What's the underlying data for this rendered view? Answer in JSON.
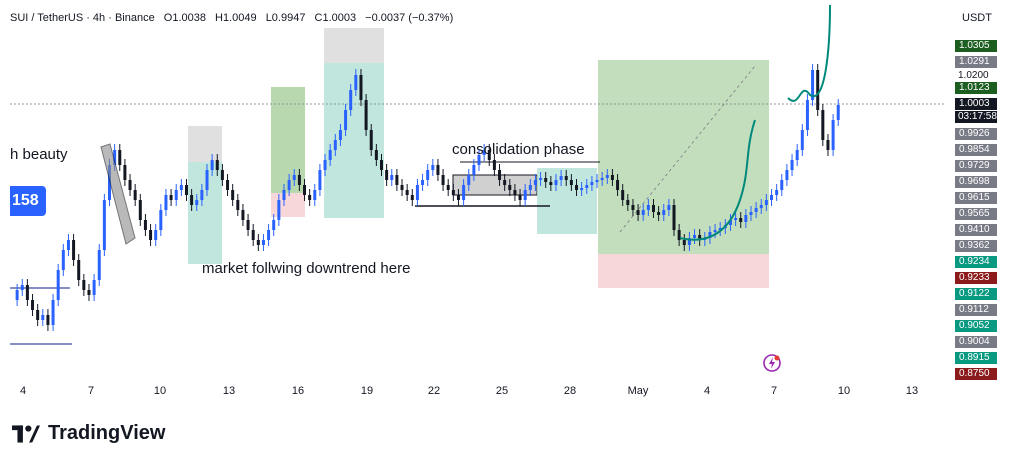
{
  "header": {
    "symbol": "SUI / TetherUS · 4h · Binance",
    "open": "O1.0038",
    "high": "H1.0049",
    "low": "L0.9947",
    "close": "C1.0003",
    "change": "−0.0037 (−0.37%)"
  },
  "price_axis": {
    "currency": "USDT",
    "tags": [
      {
        "label": "1.0305",
        "color": "#1b5e20"
      },
      {
        "label": "1.0291",
        "color": "#787b86"
      },
      {
        "label": "1.0200",
        "color": "#ffffff"
      },
      {
        "label": "1.0123",
        "color": "#1b5e20"
      },
      {
        "label": "1.0003",
        "color": "#131722"
      },
      {
        "label": "0.9926",
        "color": "#787b86"
      },
      {
        "label": "0.9854",
        "color": "#787b86"
      },
      {
        "label": "0.9729",
        "color": "#787b86"
      },
      {
        "label": "0.9698",
        "color": "#787b86"
      },
      {
        "label": "0.9615",
        "color": "#787b86"
      },
      {
        "label": "0.9565",
        "color": "#787b86"
      },
      {
        "label": "0.9410",
        "color": "#787b86"
      },
      {
        "label": "0.9362",
        "color": "#787b86"
      },
      {
        "label": "0.9234",
        "color": "#089981"
      },
      {
        "label": "0.9233",
        "color": "#8b1a1a"
      },
      {
        "label": "0.9122",
        "color": "#089981"
      },
      {
        "label": "0.9112",
        "color": "#787b86"
      },
      {
        "label": "0.9052",
        "color": "#089981"
      },
      {
        "label": "0.9004",
        "color": "#787b86"
      },
      {
        "label": "0.8915",
        "color": "#089981"
      },
      {
        "label": "0.8750",
        "color": "#8b1a1a"
      }
    ],
    "countdown": "03:17:58"
  },
  "time_axis": {
    "labels": [
      "4",
      "7",
      "10",
      "13",
      "16",
      "19",
      "22",
      "25",
      "28",
      "May",
      "4",
      "7",
      "10",
      "13"
    ]
  },
  "annotations": {
    "beauty": "h beauty",
    "consolidation": "consolidation phase",
    "downtrend": "market follwing downtrend here",
    "badge": "158"
  },
  "brand": {
    "name": "TradingView"
  },
  "colors": {
    "bull": "#2962ff",
    "bear": "#131722",
    "target_zone": "#a5d6a7",
    "stop_zone": "#f8d7da",
    "projection": "#00897b"
  }
}
